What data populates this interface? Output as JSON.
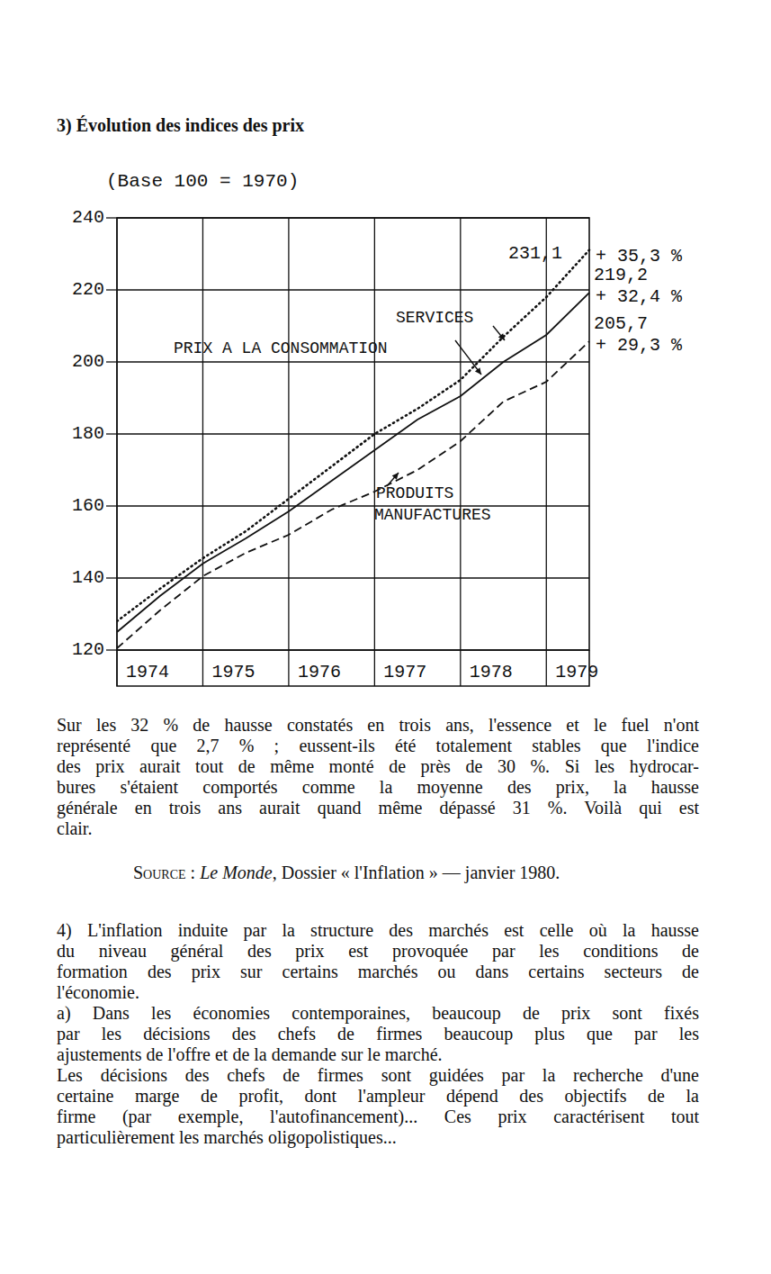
{
  "heading": "3) Évolution des indices des prix",
  "chart_data": {
    "type": "line",
    "subtitle": "(Base 100 = 1970)",
    "x": [
      1974,
      1974.5,
      1975,
      1975.5,
      1976,
      1976.5,
      1977,
      1977.5,
      1978,
      1978.5,
      1979,
      1979.5
    ],
    "xlim": [
      1974,
      1979.5
    ],
    "xticks": [
      1974,
      1975,
      1976,
      1977,
      1978,
      1979
    ],
    "ylim": [
      120,
      240
    ],
    "yticks": [
      120,
      140,
      160,
      180,
      200,
      220,
      240
    ],
    "grid": true,
    "series": [
      {
        "name": "SERVICES",
        "color": "#111111",
        "line_style": "dotted",
        "values": [
          128,
          137,
          145.5,
          153,
          162,
          171,
          180,
          187,
          195,
          207,
          218,
          231.1
        ],
        "end_labels": [
          "231,1",
          "+ 35,3 %"
        ]
      },
      {
        "name": "PRIX A LA CONSOMMATION",
        "color": "#111111",
        "line_style": "solid",
        "values": [
          125,
          135,
          144,
          151,
          158.5,
          167,
          175.5,
          184,
          190.5,
          200,
          207.5,
          219.2
        ],
        "end_labels": [
          "219,2",
          "+ 32,4 %"
        ]
      },
      {
        "name": "PRODUITS MANUFACTURES",
        "color": "#111111",
        "line_style": "dashed",
        "values": [
          120.5,
          131,
          140.5,
          147,
          152,
          159,
          164,
          170,
          178,
          189,
          194.5,
          205.7
        ],
        "end_labels": [
          "205,7",
          "+ 29,3 %"
        ]
      }
    ]
  },
  "commentary": [
    [
      "Sur les 32 % de hausse constatés en trois ans, l'essence et le fuel n'ont",
      "représenté que 2,7 % ; eussent-ils été totalement stables que l'indice",
      "des prix aurait tout de même monté de près de 30 %. Si les hydrocar-",
      "bures s'étaient comportés comme la moyenne des prix, la hausse",
      "générale en trois ans aurait quand même dépassé 31 %. Voilà qui est",
      "clair."
    ]
  ],
  "source": {
    "label": "Source :",
    "publication": "Le Monde",
    "rest": ", Dossier « l'Inflation » — janvier 1980."
  },
  "section_4": [
    [
      "4) L'inflation induite par la structure des marchés est celle où la hausse",
      "du niveau général des prix est provoquée par les conditions de",
      "formation des prix sur certains marchés ou dans certains secteurs de",
      "l'économie."
    ],
    [
      "a) Dans les économies contemporaines, beaucoup de prix sont fixés",
      "par les décisions des chefs de firmes beaucoup plus que par les",
      "ajustements de l'offre et de la demande sur le marché."
    ],
    [
      "Les décisions des chefs de firmes sont guidées par la recherche d'une",
      "certaine marge de profit, dont l'ampleur dépend des objectifs de la",
      "firme (par exemple, l'autofinancement)... Ces prix caractérisent tout",
      "particulièrement les marchés oligopolistiques..."
    ]
  ]
}
